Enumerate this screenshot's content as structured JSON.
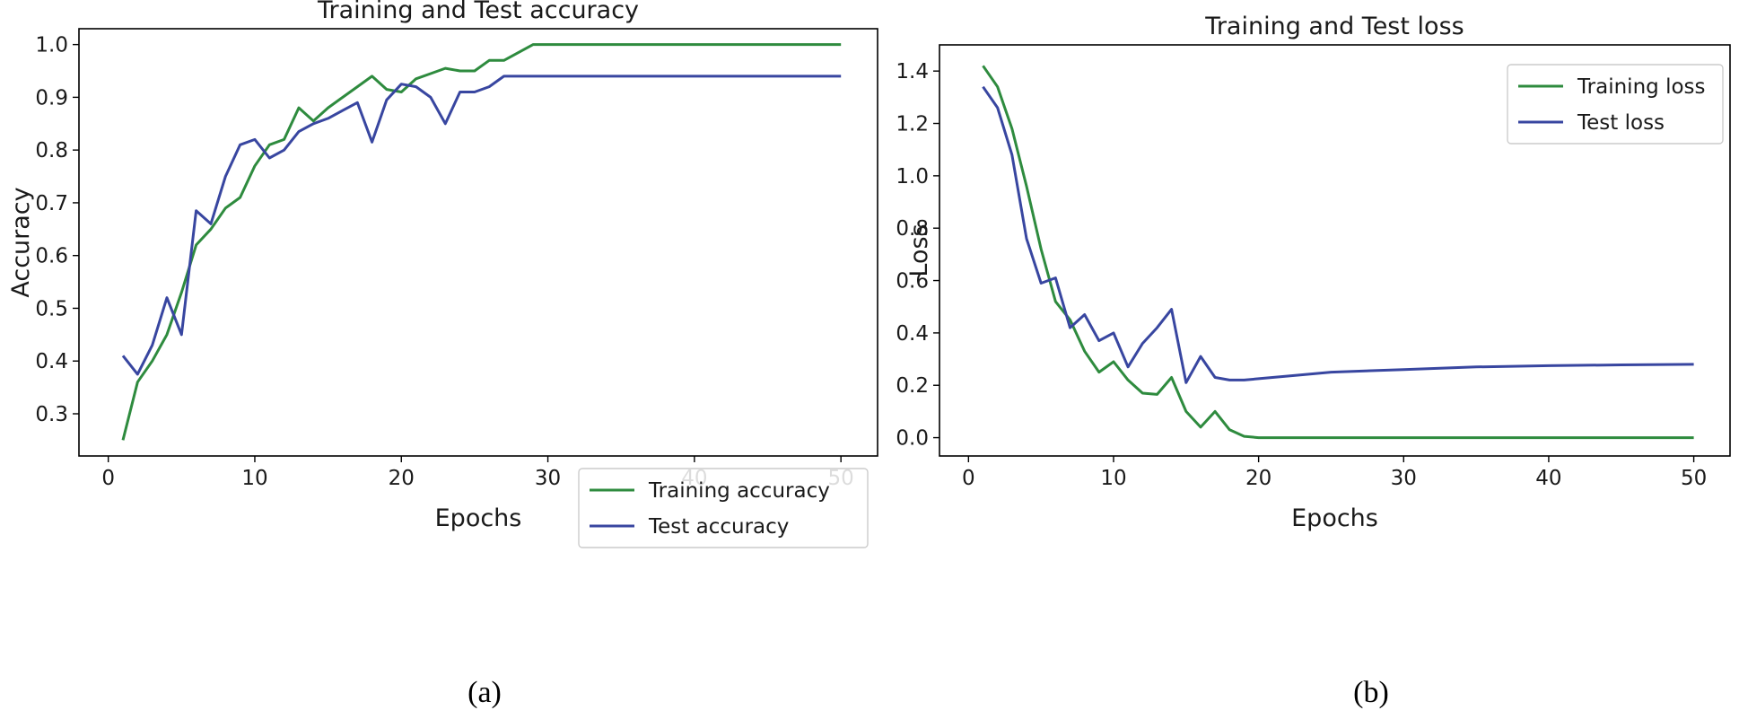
{
  "chart_data": [
    {
      "type": "line",
      "caption": "(a)",
      "title": "Training and Test accuracy",
      "xlabel": "Epochs",
      "ylabel": "Accuracy",
      "xlim": [
        -2,
        52.5
      ],
      "ylim": [
        0.22,
        1.03
      ],
      "xticks": [
        0,
        10,
        20,
        30,
        40,
        50
      ],
      "yticks": [
        0.3,
        0.4,
        0.5,
        0.6,
        0.7,
        0.8,
        0.9,
        1.0
      ],
      "ytick_labels": [
        "0.3",
        "0.4",
        "0.5",
        "0.6",
        "0.7",
        "0.8",
        "0.9",
        "1.0"
      ],
      "legend_position": "lower-right",
      "series": [
        {
          "name": "Training accuracy",
          "color": "#2e8b3e",
          "x": [
            1,
            2,
            3,
            4,
            5,
            6,
            7,
            8,
            9,
            10,
            11,
            12,
            13,
            14,
            15,
            16,
            17,
            18,
            19,
            20,
            21,
            22,
            23,
            24,
            25,
            26,
            27,
            28,
            29,
            30,
            35,
            40,
            45,
            50
          ],
          "y": [
            0.25,
            0.36,
            0.4,
            0.45,
            0.53,
            0.62,
            0.65,
            0.69,
            0.71,
            0.77,
            0.81,
            0.82,
            0.88,
            0.855,
            0.88,
            0.9,
            0.92,
            0.94,
            0.915,
            0.91,
            0.935,
            0.945,
            0.955,
            0.95,
            0.95,
            0.97,
            0.97,
            0.985,
            1.0,
            1.0,
            1.0,
            1.0,
            1.0,
            1.0
          ]
        },
        {
          "name": "Test accuracy",
          "color": "#3846a0",
          "x": [
            1,
            2,
            3,
            4,
            5,
            6,
            7,
            8,
            9,
            10,
            11,
            12,
            13,
            14,
            15,
            16,
            17,
            18,
            19,
            20,
            21,
            22,
            23,
            24,
            25,
            26,
            27,
            28,
            29,
            30,
            35,
            40,
            45,
            50
          ],
          "y": [
            0.41,
            0.375,
            0.43,
            0.52,
            0.45,
            0.685,
            0.66,
            0.75,
            0.81,
            0.82,
            0.785,
            0.8,
            0.835,
            0.85,
            0.86,
            0.875,
            0.89,
            0.815,
            0.895,
            0.925,
            0.92,
            0.9,
            0.85,
            0.91,
            0.91,
            0.92,
            0.94,
            0.94,
            0.94,
            0.94,
            0.94,
            0.94,
            0.94,
            0.94
          ]
        }
      ]
    },
    {
      "type": "line",
      "caption": "(b)",
      "title": "Training and Test loss",
      "xlabel": "Epochs",
      "ylabel": "Loss",
      "xlim": [
        -2,
        52.5
      ],
      "ylim": [
        -0.07,
        1.5
      ],
      "xticks": [
        0,
        10,
        20,
        30,
        40,
        50
      ],
      "yticks": [
        0.0,
        0.2,
        0.4,
        0.6,
        0.8,
        1.0,
        1.2,
        1.4
      ],
      "ytick_labels": [
        "0.0",
        "0.2",
        "0.4",
        "0.6",
        "0.8",
        "1.0",
        "1.2",
        "1.4"
      ],
      "legend_position": "upper-right",
      "series": [
        {
          "name": "Training loss",
          "color": "#2e8b3e",
          "x": [
            1,
            2,
            3,
            4,
            5,
            6,
            7,
            8,
            9,
            10,
            11,
            12,
            13,
            14,
            15,
            16,
            17,
            18,
            19,
            20,
            25,
            30,
            35,
            40,
            45,
            50
          ],
          "y": [
            1.42,
            1.34,
            1.18,
            0.96,
            0.72,
            0.52,
            0.45,
            0.33,
            0.25,
            0.29,
            0.22,
            0.17,
            0.165,
            0.23,
            0.1,
            0.04,
            0.1,
            0.03,
            0.005,
            0.0,
            0.0,
            0.0,
            0.0,
            0.0,
            0.0,
            0.0
          ]
        },
        {
          "name": "Test loss",
          "color": "#3846a0",
          "x": [
            1,
            2,
            3,
            4,
            5,
            6,
            7,
            8,
            9,
            10,
            11,
            12,
            13,
            14,
            15,
            16,
            17,
            18,
            19,
            20,
            22,
            25,
            30,
            35,
            40,
            45,
            50
          ],
          "y": [
            1.34,
            1.26,
            1.08,
            0.76,
            0.59,
            0.61,
            0.42,
            0.47,
            0.37,
            0.4,
            0.27,
            0.36,
            0.42,
            0.49,
            0.21,
            0.31,
            0.23,
            0.22,
            0.22,
            0.225,
            0.235,
            0.25,
            0.26,
            0.27,
            0.275,
            0.278,
            0.28
          ]
        }
      ]
    }
  ]
}
